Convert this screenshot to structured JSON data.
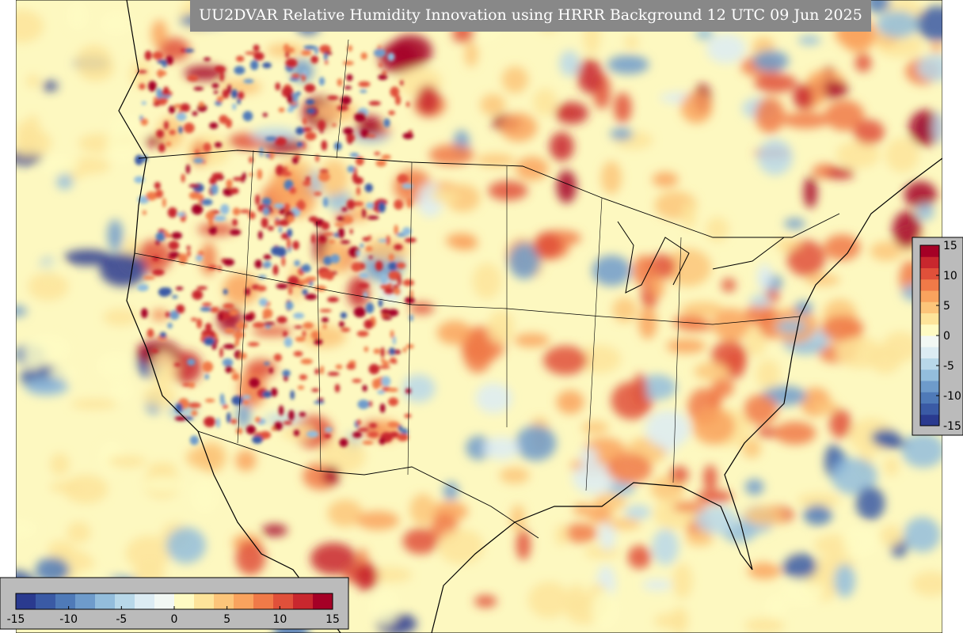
{
  "title": "UU2DVAR Relative Humidity Innovation using HRRR Background 12 UTC 09 Jun 2025",
  "colorbar_bottom": {
    "ticks": [
      -15,
      -10,
      -5,
      0,
      5,
      10,
      15
    ]
  },
  "colorbar_right": {
    "ticks": [
      15,
      10,
      5,
      0,
      -5,
      -10,
      -15
    ]
  }
}
